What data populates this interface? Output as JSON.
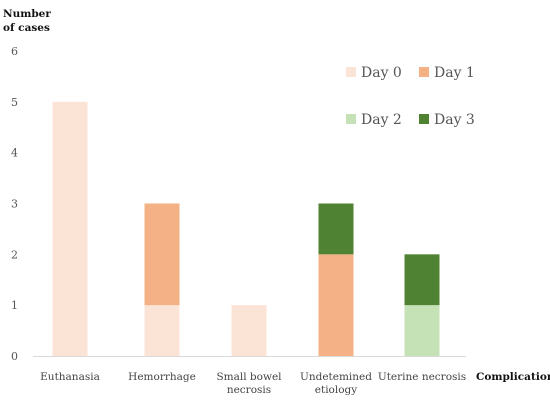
{
  "chart_data": {
    "type": "bar",
    "stacked": true,
    "ylabel": "Number of cases",
    "xlabel": "Complications",
    "ylim": [
      0,
      6
    ],
    "yticks": [
      0,
      1,
      2,
      3,
      4,
      5,
      6
    ],
    "grid": false,
    "legend_position": "top-right",
    "categories": [
      {
        "lines": [
          "Euthanasia"
        ]
      },
      {
        "lines": [
          "Hemorrhage"
        ]
      },
      {
        "lines": [
          "Small bowel",
          "necrosis"
        ]
      },
      {
        "lines": [
          "Undetemined",
          "etiology"
        ]
      },
      {
        "lines": [
          "Uterine necrosis"
        ]
      }
    ],
    "series": [
      {
        "name": "Day 0",
        "color": "#fbe3d6",
        "values": [
          5,
          1,
          1,
          0,
          0
        ]
      },
      {
        "name": "Day 1",
        "color": "#f3b185",
        "values": [
          0,
          2,
          0,
          2,
          0
        ]
      },
      {
        "name": "Day 2",
        "color": "#c5e2b7",
        "values": [
          0,
          0,
          0,
          0,
          1
        ]
      },
      {
        "name": "Day 3",
        "color": "#4f8232",
        "values": [
          0,
          0,
          0,
          1,
          1
        ]
      }
    ]
  }
}
